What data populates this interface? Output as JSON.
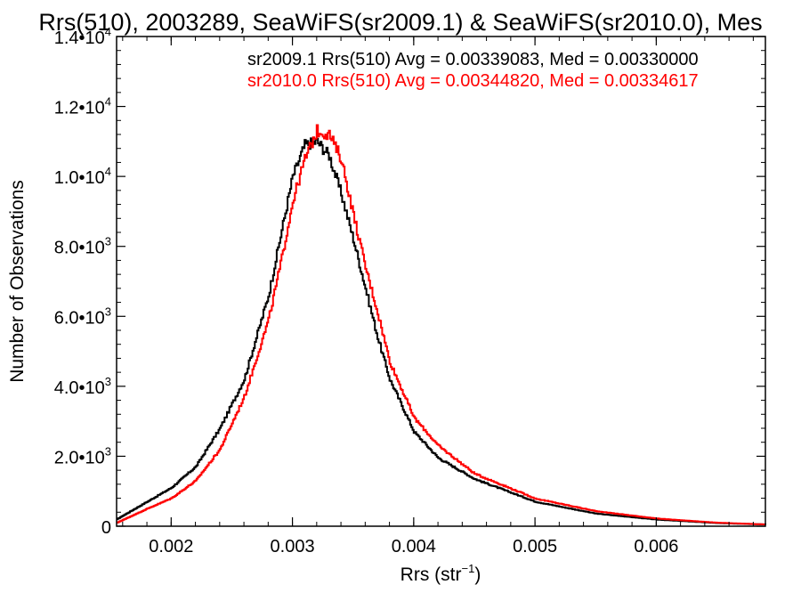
{
  "chart_data": {
    "type": "line",
    "title": "Rrs(510), 2003289, SeaWiFS(sr2009.1) & SeaWiFS(sr2010.0), Mes",
    "xlabel_base": "Rrs (str",
    "xlabel_exp": "−1",
    "xlabel_close": ")",
    "ylabel": "Number of Observations",
    "xlim": [
      0.00155,
      0.0069
    ],
    "ylim": [
      0,
      14000
    ],
    "x_ticks": [
      {
        "value": 0.002,
        "label": "0.002"
      },
      {
        "value": 0.003,
        "label": "0.003"
      },
      {
        "value": 0.004,
        "label": "0.004"
      },
      {
        "value": 0.005,
        "label": "0.005"
      },
      {
        "value": 0.006,
        "label": "0.006"
      }
    ],
    "y_ticks": [
      {
        "value": 0,
        "base": "0",
        "exp": ""
      },
      {
        "value": 2000,
        "base": "2.0•10",
        "exp": "3"
      },
      {
        "value": 4000,
        "base": "4.0•10",
        "exp": "3"
      },
      {
        "value": 6000,
        "base": "6.0•10",
        "exp": "3"
      },
      {
        "value": 8000,
        "base": "8.0•10",
        "exp": "3"
      },
      {
        "value": 10000,
        "base": "1.0•10",
        "exp": "4"
      },
      {
        "value": 12000,
        "base": "1.2•10",
        "exp": "4"
      },
      {
        "value": 14000,
        "base": "1.4•10",
        "exp": "4"
      }
    ],
    "annotations": [
      {
        "text": "sr2009.1 Rrs(510) Avg = 0.00339083, Med = 0.00330000",
        "color": "#000000"
      },
      {
        "text": "sr2010.0 Rrs(510) Avg = 0.00344820, Med = 0.00334617",
        "color": "#ff0000"
      }
    ],
    "series": [
      {
        "color": "#000000",
        "x": [
          0.00155,
          0.0018,
          0.002,
          0.0022,
          0.0024,
          0.0026,
          0.0028,
          0.0029,
          0.003,
          0.0031,
          0.0032,
          0.0033,
          0.0034,
          0.0035,
          0.0036,
          0.0037,
          0.0038,
          0.004,
          0.0042,
          0.0045,
          0.005,
          0.0055,
          0.006,
          0.0065,
          0.0069
        ],
        "y": [
          200,
          700,
          1100,
          1700,
          2800,
          4200,
          6600,
          8300,
          10000,
          10900,
          11000,
          10600,
          9500,
          8200,
          6800,
          5400,
          4200,
          2700,
          1950,
          1350,
          700,
          360,
          190,
          90,
          50
        ]
      },
      {
        "color": "#ff0000",
        "x": [
          0.00155,
          0.0018,
          0.002,
          0.0022,
          0.0024,
          0.0026,
          0.0028,
          0.0029,
          0.003,
          0.0031,
          0.0032,
          0.0033,
          0.0034,
          0.0035,
          0.0036,
          0.0037,
          0.0038,
          0.004,
          0.0042,
          0.0045,
          0.005,
          0.0055,
          0.006,
          0.0065,
          0.0069
        ],
        "y": [
          100,
          500,
          800,
          1300,
          2200,
          3700,
          5900,
          7500,
          9300,
          10500,
          11300,
          11200,
          10500,
          8900,
          7400,
          6100,
          4700,
          3100,
          2300,
          1500,
          790,
          430,
          220,
          100,
          50
        ]
      }
    ]
  }
}
